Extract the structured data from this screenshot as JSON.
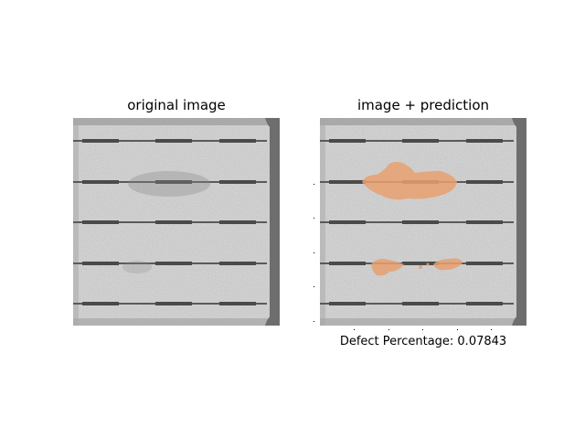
{
  "panels": {
    "left_title": "original image",
    "right_title": "image + prediction"
  },
  "caption": "Defect Percentage: 0.07843",
  "colors": {
    "cell_background": "#c9c9c9",
    "busbar": "#5a5a5a",
    "frame": "#6e6e6e",
    "prediction_overlay": "#e8a070"
  }
}
